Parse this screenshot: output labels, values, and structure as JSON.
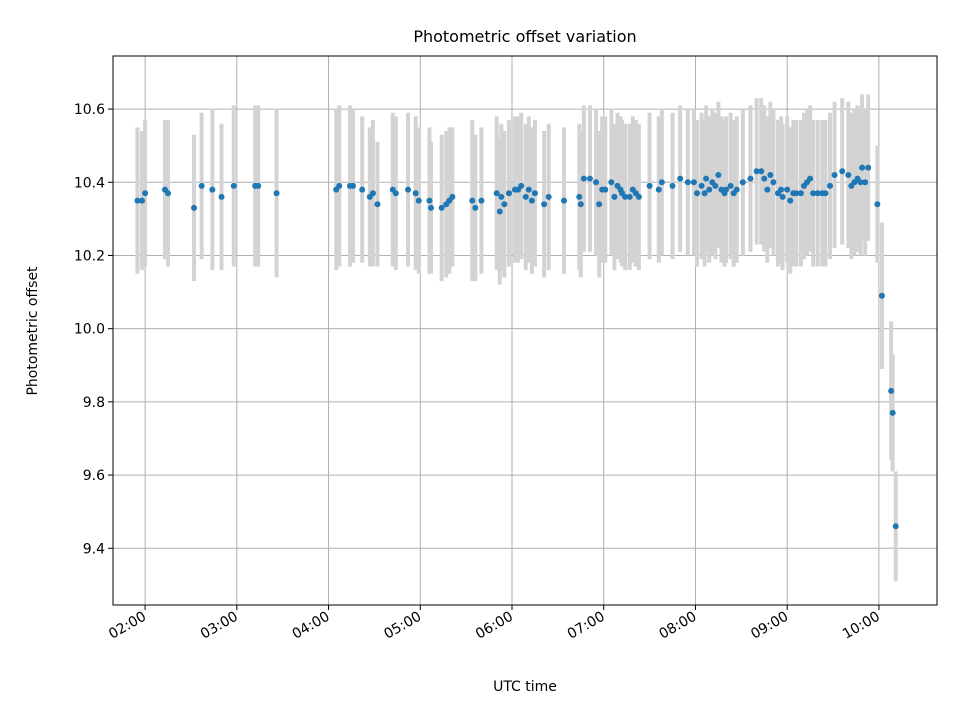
{
  "chart_data": {
    "type": "scatter",
    "title": "Photometric offset variation",
    "xlabel": "UTC time",
    "ylabel": "Photometric offset",
    "x_unit": "UTC time",
    "xlim": [
      "01:39",
      "10:38"
    ],
    "ylim": [
      9.245,
      10.745
    ],
    "x_ticks": [
      "02:00",
      "03:00",
      "04:00",
      "05:00",
      "06:00",
      "07:00",
      "08:00",
      "09:00",
      "10:00"
    ],
    "y_ticks": [
      9.4,
      9.6,
      9.8,
      10.0,
      10.2,
      10.4,
      10.6
    ],
    "y_tick_labels": [
      "9.4",
      "9.6",
      "9.8",
      "10.0",
      "10.2",
      "10.4",
      "10.6"
    ],
    "grid": true,
    "colors": {
      "point": "#1f77b4",
      "errorbar": "#d3d3d3",
      "grid": "#b0b0b0"
    },
    "points": [
      {
        "time": "01:55",
        "y": 10.35,
        "err": 0.2
      },
      {
        "time": "01:58",
        "y": 10.35,
        "err": 0.19
      },
      {
        "time": "02:00",
        "y": 10.37,
        "err": 0.2
      },
      {
        "time": "02:13",
        "y": 10.38,
        "err": 0.19
      },
      {
        "time": "02:15",
        "y": 10.37,
        "err": 0.2
      },
      {
        "time": "02:32",
        "y": 10.33,
        "err": 0.2
      },
      {
        "time": "02:37",
        "y": 10.39,
        "err": 0.2
      },
      {
        "time": "02:44",
        "y": 10.38,
        "err": 0.22
      },
      {
        "time": "02:50",
        "y": 10.36,
        "err": 0.2
      },
      {
        "time": "02:58",
        "y": 10.39,
        "err": 0.22
      },
      {
        "time": "03:12",
        "y": 10.39,
        "err": 0.22
      },
      {
        "time": "03:14",
        "y": 10.39,
        "err": 0.22
      },
      {
        "time": "03:26",
        "y": 10.37,
        "err": 0.23
      },
      {
        "time": "04:05",
        "y": 10.38,
        "err": 0.22
      },
      {
        "time": "04:07",
        "y": 10.39,
        "err": 0.22
      },
      {
        "time": "04:14",
        "y": 10.39,
        "err": 0.22
      },
      {
        "time": "04:16",
        "y": 10.39,
        "err": 0.21
      },
      {
        "time": "04:22",
        "y": 10.38,
        "err": 0.2
      },
      {
        "time": "04:27",
        "y": 10.36,
        "err": 0.19
      },
      {
        "time": "04:29",
        "y": 10.37,
        "err": 0.2
      },
      {
        "time": "04:32",
        "y": 10.34,
        "err": 0.17
      },
      {
        "time": "04:42",
        "y": 10.38,
        "err": 0.21
      },
      {
        "time": "04:44",
        "y": 10.37,
        "err": 0.21
      },
      {
        "time": "04:52",
        "y": 10.38,
        "err": 0.21
      },
      {
        "time": "04:57",
        "y": 10.37,
        "err": 0.21
      },
      {
        "time": "04:59",
        "y": 10.35,
        "err": 0.2
      },
      {
        "time": "05:06",
        "y": 10.35,
        "err": 0.2
      },
      {
        "time": "05:07",
        "y": 10.33,
        "err": 0.18
      },
      {
        "time": "05:14",
        "y": 10.33,
        "err": 0.2
      },
      {
        "time": "05:17",
        "y": 10.34,
        "err": 0.2
      },
      {
        "time": "05:19",
        "y": 10.35,
        "err": 0.2
      },
      {
        "time": "05:21",
        "y": 10.36,
        "err": 0.19
      },
      {
        "time": "05:34",
        "y": 10.35,
        "err": 0.22
      },
      {
        "time": "05:36",
        "y": 10.33,
        "err": 0.2
      },
      {
        "time": "05:40",
        "y": 10.35,
        "err": 0.2
      },
      {
        "time": "05:50",
        "y": 10.37,
        "err": 0.21
      },
      {
        "time": "05:52",
        "y": 10.32,
        "err": 0.2
      },
      {
        "time": "05:53",
        "y": 10.36,
        "err": 0.2
      },
      {
        "time": "05:55",
        "y": 10.34,
        "err": 0.2
      },
      {
        "time": "05:58",
        "y": 10.37,
        "err": 0.2
      },
      {
        "time": "06:02",
        "y": 10.38,
        "err": 0.2
      },
      {
        "time": "06:04",
        "y": 10.38,
        "err": 0.2
      },
      {
        "time": "06:06",
        "y": 10.39,
        "err": 0.2
      },
      {
        "time": "06:09",
        "y": 10.36,
        "err": 0.2
      },
      {
        "time": "06:11",
        "y": 10.38,
        "err": 0.2
      },
      {
        "time": "06:13",
        "y": 10.35,
        "err": 0.2
      },
      {
        "time": "06:15",
        "y": 10.37,
        "err": 0.2
      },
      {
        "time": "06:21",
        "y": 10.34,
        "err": 0.2
      },
      {
        "time": "06:24",
        "y": 10.36,
        "err": 0.2
      },
      {
        "time": "06:34",
        "y": 10.35,
        "err": 0.2
      },
      {
        "time": "06:44",
        "y": 10.36,
        "err": 0.2
      },
      {
        "time": "06:45",
        "y": 10.34,
        "err": 0.2
      },
      {
        "time": "06:47",
        "y": 10.41,
        "err": 0.2
      },
      {
        "time": "06:51",
        "y": 10.41,
        "err": 0.2
      },
      {
        "time": "06:55",
        "y": 10.4,
        "err": 0.2
      },
      {
        "time": "06:57",
        "y": 10.34,
        "err": 0.2
      },
      {
        "time": "06:59",
        "y": 10.38,
        "err": 0.2
      },
      {
        "time": "07:01",
        "y": 10.38,
        "err": 0.2
      },
      {
        "time": "07:05",
        "y": 10.4,
        "err": 0.2
      },
      {
        "time": "07:07",
        "y": 10.36,
        "err": 0.2
      },
      {
        "time": "07:09",
        "y": 10.39,
        "err": 0.2
      },
      {
        "time": "07:11",
        "y": 10.38,
        "err": 0.2
      },
      {
        "time": "07:12",
        "y": 10.37,
        "err": 0.2
      },
      {
        "time": "07:14",
        "y": 10.36,
        "err": 0.2
      },
      {
        "time": "07:17",
        "y": 10.36,
        "err": 0.2
      },
      {
        "time": "07:19",
        "y": 10.38,
        "err": 0.2
      },
      {
        "time": "07:21",
        "y": 10.37,
        "err": 0.2
      },
      {
        "time": "07:23",
        "y": 10.36,
        "err": 0.2
      },
      {
        "time": "07:30",
        "y": 10.39,
        "err": 0.2
      },
      {
        "time": "07:36",
        "y": 10.38,
        "err": 0.2
      },
      {
        "time": "07:38",
        "y": 10.4,
        "err": 0.2
      },
      {
        "time": "07:45",
        "y": 10.39,
        "err": 0.2
      },
      {
        "time": "07:50",
        "y": 10.41,
        "err": 0.2
      },
      {
        "time": "07:55",
        "y": 10.4,
        "err": 0.2
      },
      {
        "time": "07:59",
        "y": 10.4,
        "err": 0.2
      },
      {
        "time": "08:01",
        "y": 10.37,
        "err": 0.2
      },
      {
        "time": "08:04",
        "y": 10.39,
        "err": 0.2
      },
      {
        "time": "08:06",
        "y": 10.37,
        "err": 0.2
      },
      {
        "time": "08:07",
        "y": 10.41,
        "err": 0.2
      },
      {
        "time": "08:09",
        "y": 10.38,
        "err": 0.2
      },
      {
        "time": "08:11",
        "y": 10.4,
        "err": 0.2
      },
      {
        "time": "08:13",
        "y": 10.39,
        "err": 0.2
      },
      {
        "time": "08:15",
        "y": 10.42,
        "err": 0.2
      },
      {
        "time": "08:17",
        "y": 10.38,
        "err": 0.2
      },
      {
        "time": "08:19",
        "y": 10.37,
        "err": 0.2
      },
      {
        "time": "08:20",
        "y": 10.38,
        "err": 0.2
      },
      {
        "time": "08:23",
        "y": 10.39,
        "err": 0.2
      },
      {
        "time": "08:25",
        "y": 10.37,
        "err": 0.2
      },
      {
        "time": "08:27",
        "y": 10.38,
        "err": 0.2
      },
      {
        "time": "08:31",
        "y": 10.4,
        "err": 0.2
      },
      {
        "time": "08:36",
        "y": 10.41,
        "err": 0.2
      },
      {
        "time": "08:40",
        "y": 10.43,
        "err": 0.2
      },
      {
        "time": "08:43",
        "y": 10.43,
        "err": 0.2
      },
      {
        "time": "08:45",
        "y": 10.41,
        "err": 0.2
      },
      {
        "time": "08:47",
        "y": 10.38,
        "err": 0.2
      },
      {
        "time": "08:49",
        "y": 10.42,
        "err": 0.2
      },
      {
        "time": "08:51",
        "y": 10.4,
        "err": 0.2
      },
      {
        "time": "08:54",
        "y": 10.37,
        "err": 0.2
      },
      {
        "time": "08:56",
        "y": 10.38,
        "err": 0.2
      },
      {
        "time": "08:57",
        "y": 10.36,
        "err": 0.2
      },
      {
        "time": "09:00",
        "y": 10.38,
        "err": 0.2
      },
      {
        "time": "09:02",
        "y": 10.35,
        "err": 0.2
      },
      {
        "time": "09:04",
        "y": 10.37,
        "err": 0.2
      },
      {
        "time": "09:06",
        "y": 10.37,
        "err": 0.2
      },
      {
        "time": "09:09",
        "y": 10.37,
        "err": 0.2
      },
      {
        "time": "09:11",
        "y": 10.39,
        "err": 0.2
      },
      {
        "time": "09:13",
        "y": 10.4,
        "err": 0.2
      },
      {
        "time": "09:15",
        "y": 10.41,
        "err": 0.2
      },
      {
        "time": "09:17",
        "y": 10.37,
        "err": 0.2
      },
      {
        "time": "09:20",
        "y": 10.37,
        "err": 0.2
      },
      {
        "time": "09:23",
        "y": 10.37,
        "err": 0.2
      },
      {
        "time": "09:25",
        "y": 10.37,
        "err": 0.2
      },
      {
        "time": "09:28",
        "y": 10.39,
        "err": 0.2
      },
      {
        "time": "09:31",
        "y": 10.42,
        "err": 0.2
      },
      {
        "time": "09:36",
        "y": 10.43,
        "err": 0.2
      },
      {
        "time": "09:40",
        "y": 10.42,
        "err": 0.2
      },
      {
        "time": "09:42",
        "y": 10.39,
        "err": 0.2
      },
      {
        "time": "09:44",
        "y": 10.4,
        "err": 0.2
      },
      {
        "time": "09:46",
        "y": 10.41,
        "err": 0.2
      },
      {
        "time": "09:48",
        "y": 10.4,
        "err": 0.2
      },
      {
        "time": "09:49",
        "y": 10.44,
        "err": 0.2
      },
      {
        "time": "09:51",
        "y": 10.4,
        "err": 0.2
      },
      {
        "time": "09:53",
        "y": 10.44,
        "err": 0.2
      },
      {
        "time": "09:59",
        "y": 10.34,
        "err": 0.16
      },
      {
        "time": "10:02",
        "y": 10.09,
        "err": 0.2
      },
      {
        "time": "10:08",
        "y": 9.83,
        "err": 0.19
      },
      {
        "time": "10:09",
        "y": 9.77,
        "err": 0.16
      },
      {
        "time": "10:11",
        "y": 9.46,
        "err": 0.15
      }
    ]
  }
}
